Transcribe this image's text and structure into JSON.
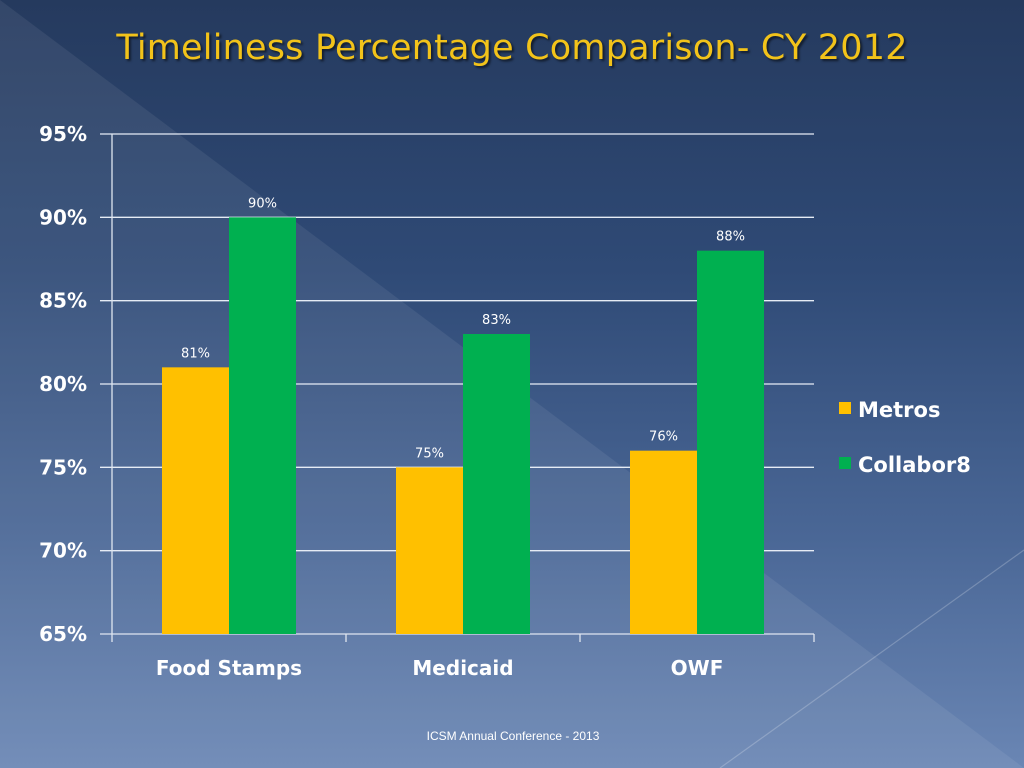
{
  "slide": {
    "title": "Timeliness Percentage Comparison- CY 2012",
    "footer": "ICSM Annual Conference  - 2013"
  },
  "chart_data": {
    "type": "bar",
    "title": "Timeliness Percentage Comparison- CY 2012",
    "xlabel": "",
    "ylabel": "",
    "categories": [
      "Food Stamps",
      "Medicaid",
      "OWF"
    ],
    "series": [
      {
        "name": "Metros",
        "color": "#ffc000",
        "values": [
          81,
          75,
          76
        ],
        "labels": [
          "81%",
          "75%",
          "76%"
        ]
      },
      {
        "name": "Collabor8",
        "color": "#00b050",
        "values": [
          90,
          83,
          88
        ],
        "labels": [
          "90%",
          "83%",
          "88%"
        ]
      }
    ],
    "ylim": [
      65,
      95
    ],
    "yticks": [
      95,
      90,
      85,
      80,
      75,
      70,
      65
    ],
    "ytick_labels": [
      "95%",
      "90%",
      "85%",
      "80%",
      "75%",
      "70%",
      "65%"
    ],
    "grid": true,
    "legend_position": "right"
  }
}
